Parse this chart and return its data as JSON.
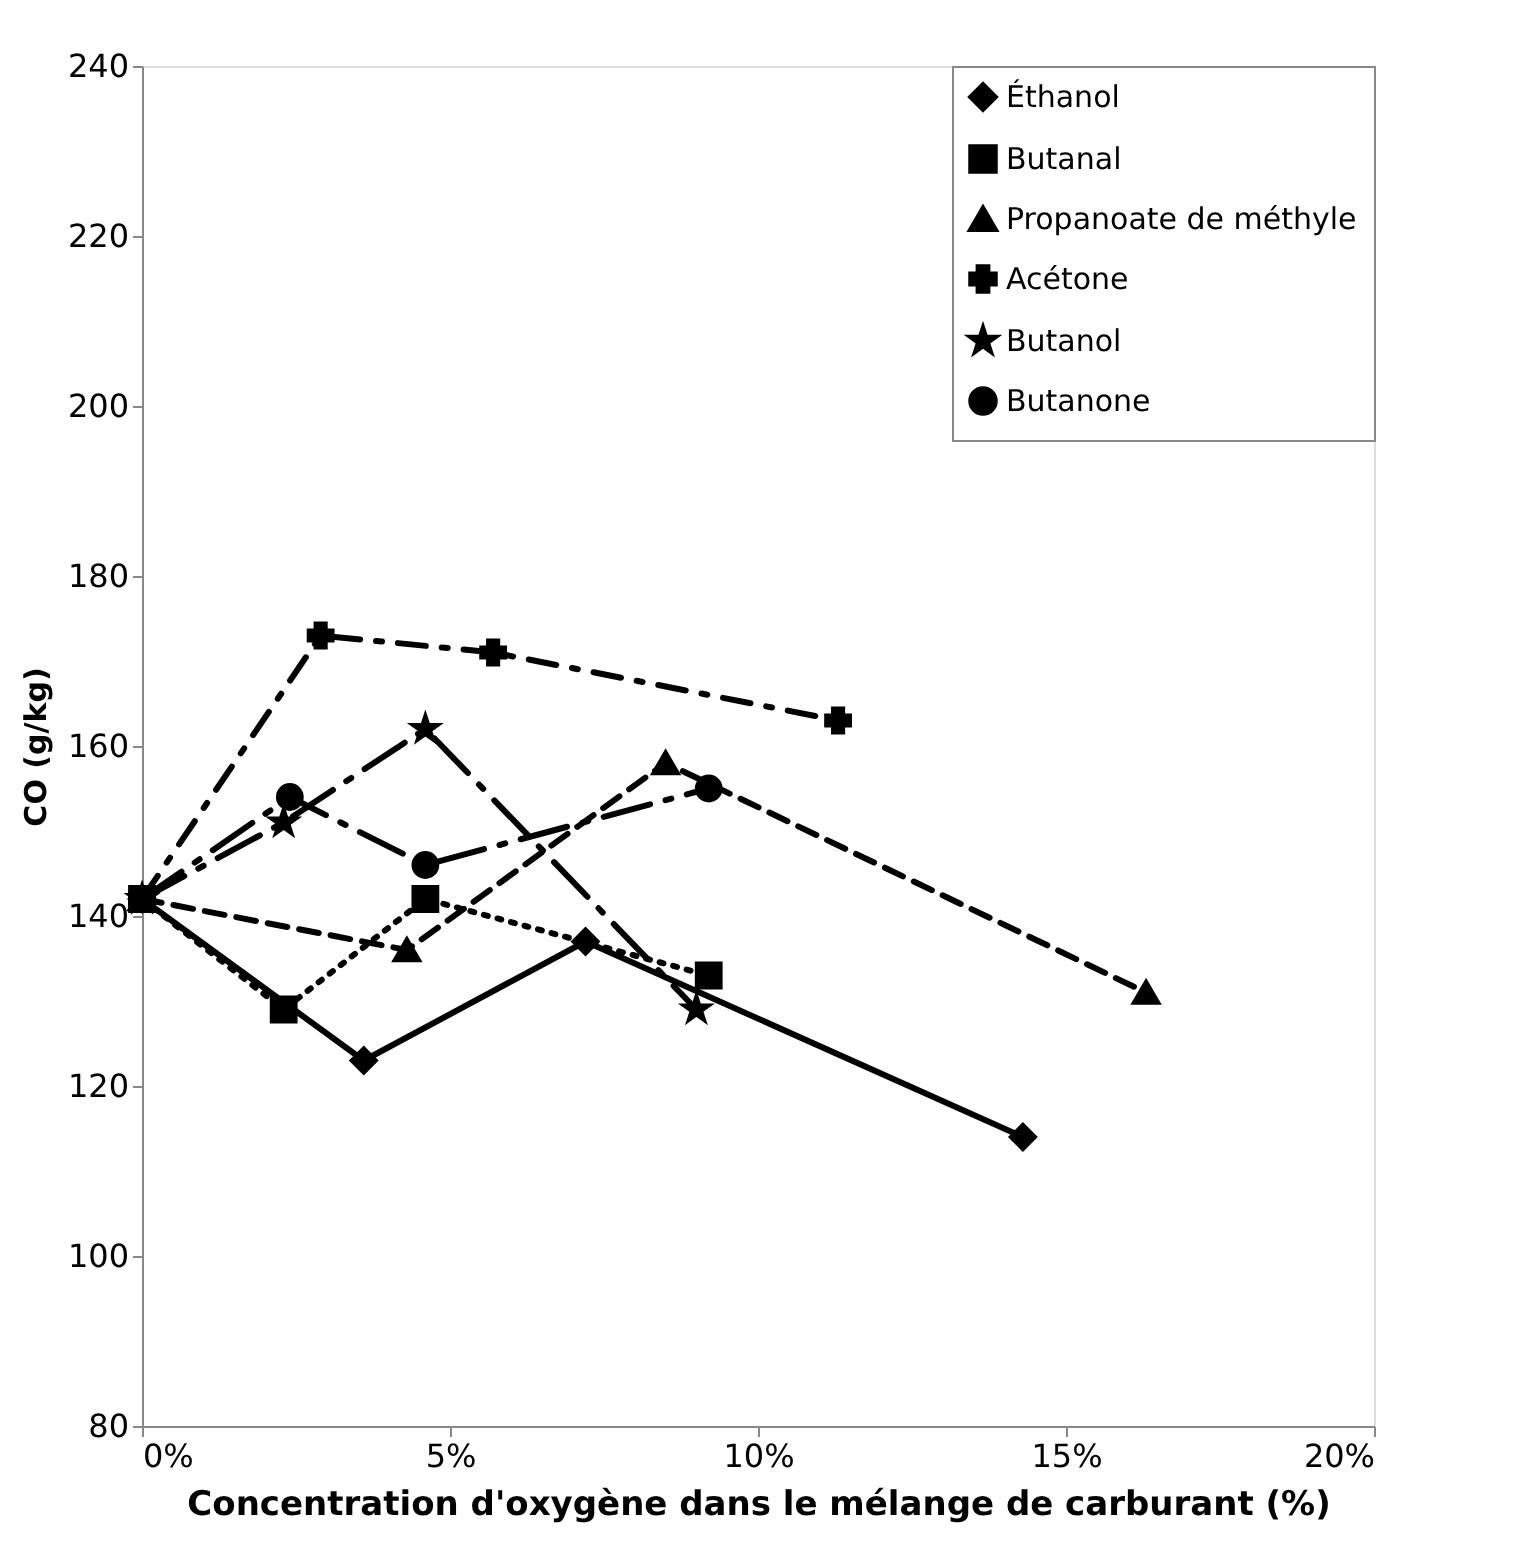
{
  "chart_data": {
    "type": "line",
    "xlabel": "Concentration d'oxygène dans le mélange de carburant (%)",
    "ylabel": "CO (g/kg)",
    "xlim": [
      0,
      20
    ],
    "xticks": [
      {
        "value": 0,
        "label": "0%"
      },
      {
        "value": 5,
        "label": "5%"
      },
      {
        "value": 10,
        "label": "10%"
      },
      {
        "value": 15,
        "label": "15%"
      },
      {
        "value": 20,
        "label": "20%"
      }
    ],
    "ylim": [
      80,
      240
    ],
    "yticks": [
      80,
      100,
      120,
      140,
      160,
      180,
      200,
      220,
      240
    ],
    "grid": false,
    "legend": "top right",
    "series": [
      {
        "name": "Éthanol",
        "color": "#000000",
        "marker": "diamond",
        "line_style": "solid",
        "x": [
          0,
          3.6,
          7.2,
          14.3
        ],
        "values": [
          142,
          123,
          137,
          114
        ]
      },
      {
        "name": "Butanal",
        "color": "#000000",
        "marker": "square",
        "line_style": "dotted",
        "x": [
          0,
          2.3,
          4.6,
          9.2
        ],
        "values": [
          142,
          129,
          142,
          133
        ]
      },
      {
        "name": "Propanoate de méthyle",
        "color": "#000000",
        "marker": "triangle",
        "line_style": "dashed",
        "x": [
          0,
          4.3,
          8.5,
          16.3
        ],
        "values": [
          142,
          136,
          158,
          131
        ]
      },
      {
        "name": "Acétone",
        "color": "#000000",
        "marker": "cross",
        "line_style": "dashdot",
        "x": [
          0,
          2.9,
          5.7,
          11.3
        ],
        "values": [
          142,
          173,
          171,
          163
        ]
      },
      {
        "name": "Butanol",
        "color": "#000000",
        "marker": "star",
        "line_style": "longdashdot",
        "x": [
          0,
          2.3,
          4.6,
          9.0
        ],
        "values": [
          142,
          151,
          162,
          129
        ]
      },
      {
        "name": "Butanone",
        "color": "#000000",
        "marker": "circle",
        "line_style": "longdashdot",
        "x": [
          0,
          2.4,
          4.6,
          9.2
        ],
        "values": [
          142,
          154,
          146,
          155
        ]
      }
    ]
  }
}
